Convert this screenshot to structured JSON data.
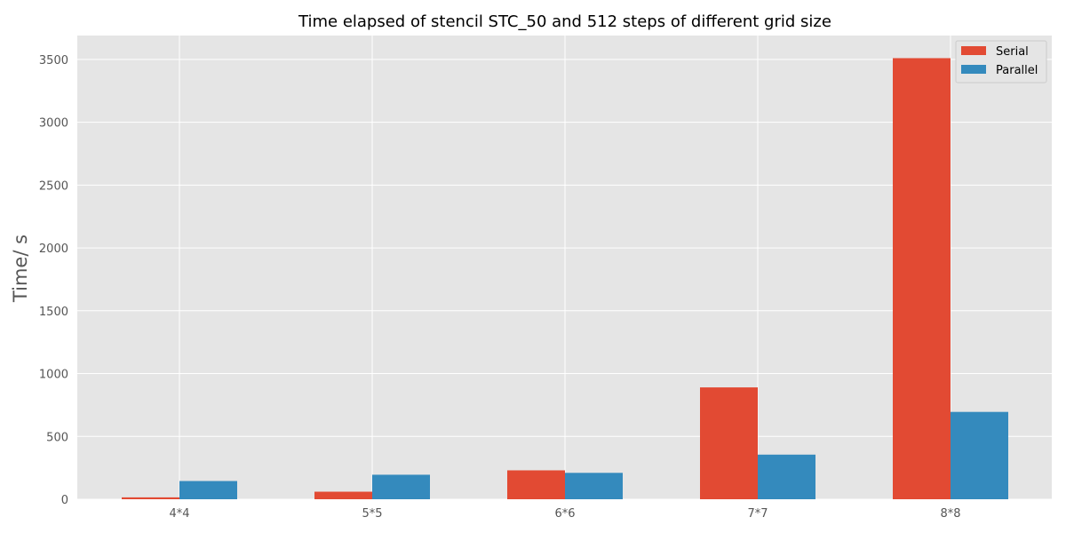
{
  "chart_data": {
    "type": "bar",
    "title": "Time elapsed of stencil STC_50 and 512 steps of different grid size",
    "xlabel": "",
    "ylabel": "Time/ s",
    "categories": [
      "4*4",
      "5*5",
      "6*6",
      "7*7",
      "8*8"
    ],
    "series": [
      {
        "name": "Serial",
        "color": "#E24A33",
        "values": [
          15,
          60,
          230,
          890,
          3510
        ]
      },
      {
        "name": "Parallel",
        "color": "#348ABD",
        "values": [
          145,
          195,
          210,
          355,
          695
        ]
      }
    ],
    "ylim": [
      0,
      3690
    ],
    "yticks": [
      0,
      500,
      1000,
      1500,
      2000,
      2500,
      3000,
      3500
    ],
    "grid": true,
    "legend_position": "top-right",
    "plot_background": "#E5E5E5",
    "grid_color": "#FFFFFF"
  }
}
